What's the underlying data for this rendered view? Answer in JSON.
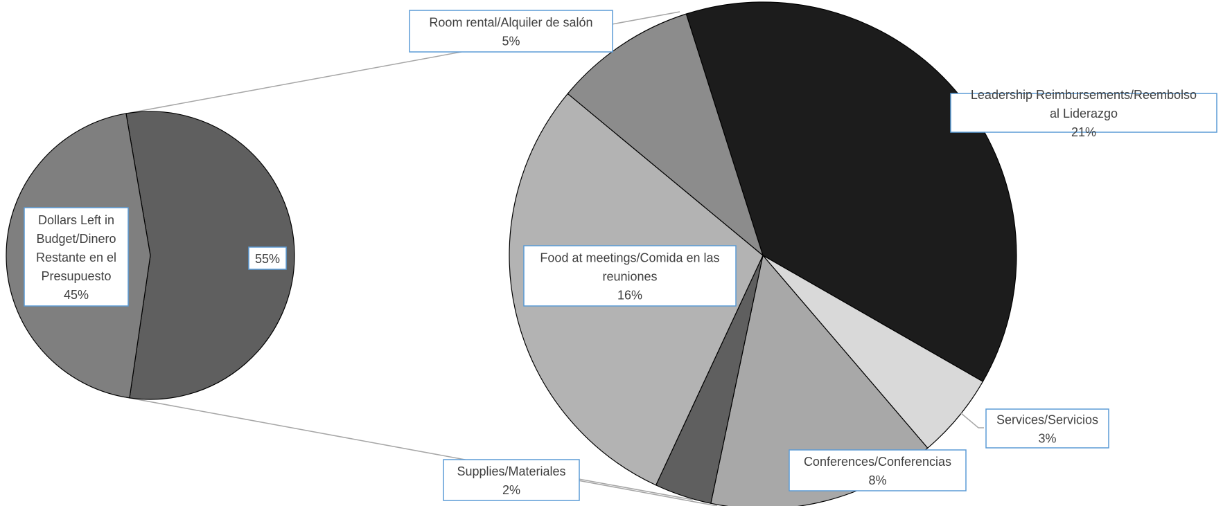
{
  "chart_data": {
    "type": "pie-of-pie",
    "title": "",
    "main_pie": {
      "slices": [
        {
          "label": "Leadership Reimbursements/Reembolso al Liderazgo",
          "value": 21,
          "display": "21%",
          "color": "#1c1c1c"
        },
        {
          "label": "Services/Servicios",
          "value": 3,
          "display": "3%",
          "color": "#d9d9d9"
        },
        {
          "label": "Conferences/Conferencias",
          "value": 8,
          "display": "8%",
          "color": "#a8a8a8"
        },
        {
          "label": "Supplies/Materiales",
          "value": 2,
          "display": "2%",
          "color": "#5f5f5f"
        },
        {
          "label": "Food at meetings/Comida en las reuniones",
          "value": 16,
          "display": "16%",
          "color": "#b3b3b3"
        },
        {
          "label": "Room rental/Alquiler de salón",
          "value": 5,
          "display": "5%",
          "color": "#8c8c8c"
        }
      ]
    },
    "secondary_pie": {
      "slices": [
        {
          "label": "",
          "value": 55,
          "display": "55%",
          "color": "#5f5f5f"
        },
        {
          "label": "Dollars Left in Budget/Dinero Restante en el Presupuesto",
          "value": 45,
          "display": "45%",
          "color": "#7f7f7f"
        }
      ]
    }
  }
}
